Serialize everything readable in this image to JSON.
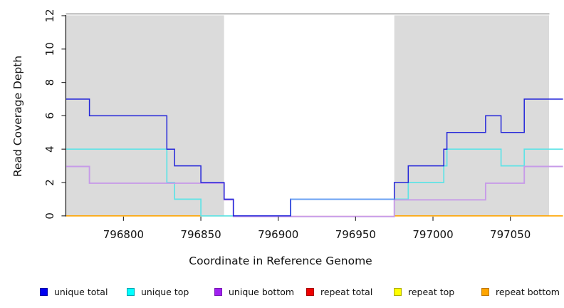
{
  "chart_data": {
    "type": "line",
    "subtype": "step-coverage",
    "title": "",
    "xlabel": "Coordinate in Reference Genome",
    "ylabel": "Read Coverage Depth",
    "xlim": [
      796763,
      797084
    ],
    "plot_xlim": [
      796763,
      797075
    ],
    "ylim": [
      0,
      12
    ],
    "x_ticks": [
      796800,
      796850,
      796900,
      796950,
      797000,
      797050
    ],
    "y_ticks": [
      0,
      2,
      4,
      6,
      8,
      10,
      12
    ],
    "grid": false,
    "legend_position": "bottom",
    "shaded_regions": [
      {
        "from": 796763,
        "to": 796865,
        "fill": "#DBDBDB"
      },
      {
        "from": 796975,
        "to": 797075,
        "fill": "#DBDBDB"
      }
    ],
    "series": [
      {
        "name": "unique total",
        "color": "#2426D9",
        "steps": [
          [
            796763,
            7
          ],
          [
            796778,
            6
          ],
          [
            796828,
            4
          ],
          [
            796833,
            3
          ],
          [
            796850,
            2
          ],
          [
            796865,
            1
          ],
          [
            796871,
            0
          ],
          [
            796908,
            1
          ],
          [
            796975,
            2
          ],
          [
            796984,
            3
          ],
          [
            797007,
            4
          ],
          [
            797009,
            5
          ],
          [
            797034,
            6
          ],
          [
            797044,
            5
          ],
          [
            797059,
            7
          ],
          [
            797084,
            7
          ]
        ]
      },
      {
        "name": "unique top",
        "color": "#5FE3E6",
        "steps": [
          [
            796763,
            4
          ],
          [
            796828,
            2
          ],
          [
            796833,
            1
          ],
          [
            796850,
            0
          ],
          [
            796908,
            1
          ],
          [
            796984,
            2
          ],
          [
            797007,
            3
          ],
          [
            797009,
            4
          ],
          [
            797044,
            3
          ],
          [
            797059,
            4
          ],
          [
            797084,
            4
          ]
        ]
      },
      {
        "name": "unique bottom",
        "color": "#C79BE8",
        "steps": [
          [
            796763,
            3
          ],
          [
            796778,
            2
          ],
          [
            796865,
            1
          ],
          [
            796871,
            0
          ],
          [
            796975,
            1
          ],
          [
            797034,
            2
          ],
          [
            797059,
            3
          ],
          [
            797084,
            3
          ]
        ]
      },
      {
        "name": "repeat total",
        "color": "#E46A6A",
        "steps": [
          [
            796763,
            0
          ],
          [
            797084,
            0
          ]
        ]
      },
      {
        "name": "repeat top",
        "color": "#EDED42",
        "steps": [
          [
            796763,
            0
          ],
          [
            797084,
            0
          ]
        ]
      },
      {
        "name": "repeat bottom",
        "color": "#FFA500",
        "steps": [
          [
            796763,
            0
          ],
          [
            797084,
            0
          ]
        ]
      }
    ],
    "baseline_visible_segments": [
      {
        "color": "#FFA500",
        "from": 796763,
        "to": 796851,
        "offset": 0
      },
      {
        "color": "#8FDC8F",
        "from": 796851,
        "to": 796872,
        "offset": 0
      },
      {
        "color": "#E46A6A",
        "from": 796871,
        "to": 796975,
        "offset": 0.9
      },
      {
        "color": "#FFA500",
        "from": 796975,
        "to": 797084,
        "offset": 0
      }
    ],
    "overlap_segments": [
      {
        "from": 796908,
        "to": 796975,
        "depth": 1,
        "color": "#69A0F4"
      }
    ],
    "legend": [
      {
        "label": "unique total",
        "fill": "#0000F0",
        "border": "#0000A8"
      },
      {
        "label": "unique top",
        "fill": "#00FFFF",
        "border": "#00A8B4"
      },
      {
        "label": "unique bottom",
        "fill": "#A020F0",
        "border": "#7818B4"
      },
      {
        "label": "repeat total",
        "fill": "#EE0000",
        "border": "#AA0000"
      },
      {
        "label": "repeat top",
        "fill": "#FFFF00",
        "border": "#B0B000"
      },
      {
        "label": "repeat bottom",
        "fill": "#FFA500",
        "border": "#C07800"
      }
    ]
  }
}
